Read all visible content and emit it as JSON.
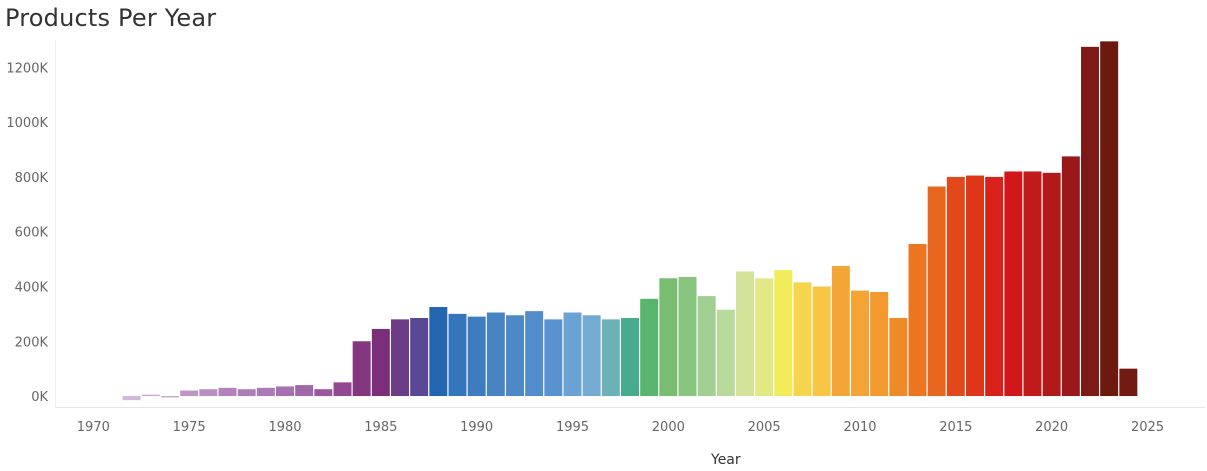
{
  "chart_data": {
    "type": "bar",
    "title": "Products Per Year",
    "xlabel": "Year",
    "ylabel": "",
    "ylim": [
      -40,
      1300
    ],
    "xlim": [
      1968,
      2028
    ],
    "x_ticks": [
      "1970",
      "1975",
      "1980",
      "1985",
      "1990",
      "1995",
      "2000",
      "2005",
      "2010",
      "2015",
      "2020",
      "2025"
    ],
    "y_ticks": [
      {
        "value": 0,
        "label": "0K"
      },
      {
        "value": 200,
        "label": "200K"
      },
      {
        "value": 400,
        "label": "400K"
      },
      {
        "value": 600,
        "label": "600K"
      },
      {
        "value": 800,
        "label": "800K"
      },
      {
        "value": 1000,
        "label": "1000K"
      },
      {
        "value": 1200,
        "label": "1200K"
      }
    ],
    "grid": false,
    "categories": [
      1972,
      1973,
      1974,
      1975,
      1976,
      1977,
      1978,
      1979,
      1980,
      1981,
      1982,
      1983,
      1984,
      1985,
      1986,
      1987,
      1988,
      1989,
      1990,
      1991,
      1992,
      1993,
      1994,
      1995,
      1996,
      1997,
      1998,
      1999,
      2000,
      2001,
      2002,
      2003,
      2004,
      2005,
      2006,
      2007,
      2008,
      2009,
      2010,
      2011,
      2012,
      2013,
      2014,
      2015,
      2016,
      2017,
      2018,
      2019,
      2020,
      2021,
      2022,
      2023,
      2024
    ],
    "values": [
      -15,
      5,
      -5,
      20,
      25,
      30,
      25,
      30,
      35,
      40,
      25,
      50,
      200,
      245,
      280,
      285,
      325,
      300,
      290,
      305,
      295,
      310,
      280,
      305,
      295,
      280,
      285,
      355,
      430,
      435,
      365,
      315,
      455,
      430,
      460,
      415,
      400,
      475,
      385,
      380,
      285,
      555,
      765,
      800,
      805,
      800,
      820,
      820,
      815,
      875,
      1275,
      1295,
      100
    ],
    "colors": [
      "#d2b6d9",
      "#caa7d3",
      "#c3a1ce",
      "#bd94c4",
      "#b88ec3",
      "#b283bb",
      "#ad7fb8",
      "#aa7cb5",
      "#a571b0",
      "#a068aa",
      "#98579e",
      "#914993",
      "#83377f",
      "#7b2e79",
      "#6d3c86",
      "#5a4897",
      "#2465b0",
      "#3476bb",
      "#3e7bbf",
      "#4883c4",
      "#4d89c7",
      "#538ccb",
      "#5893cf",
      "#6aa2d4",
      "#73abd2",
      "#6bb1b6",
      "#48ab8d",
      "#59b46d",
      "#78bd72",
      "#88c57e",
      "#a1ce93",
      "#b7da9a",
      "#d3e49a",
      "#e1e985",
      "#f2ec5b",
      "#f5d54d",
      "#f6c644",
      "#f3a535",
      "#f4a434",
      "#f29a2f",
      "#ef8b26",
      "#ec7521",
      "#e8661e",
      "#e3481a",
      "#dd3718",
      "#d9201b",
      "#d0181b",
      "#c11a1b",
      "#b21a1a",
      "#9a1819",
      "#7e1916",
      "#6c1a10",
      "#711a12"
    ]
  }
}
